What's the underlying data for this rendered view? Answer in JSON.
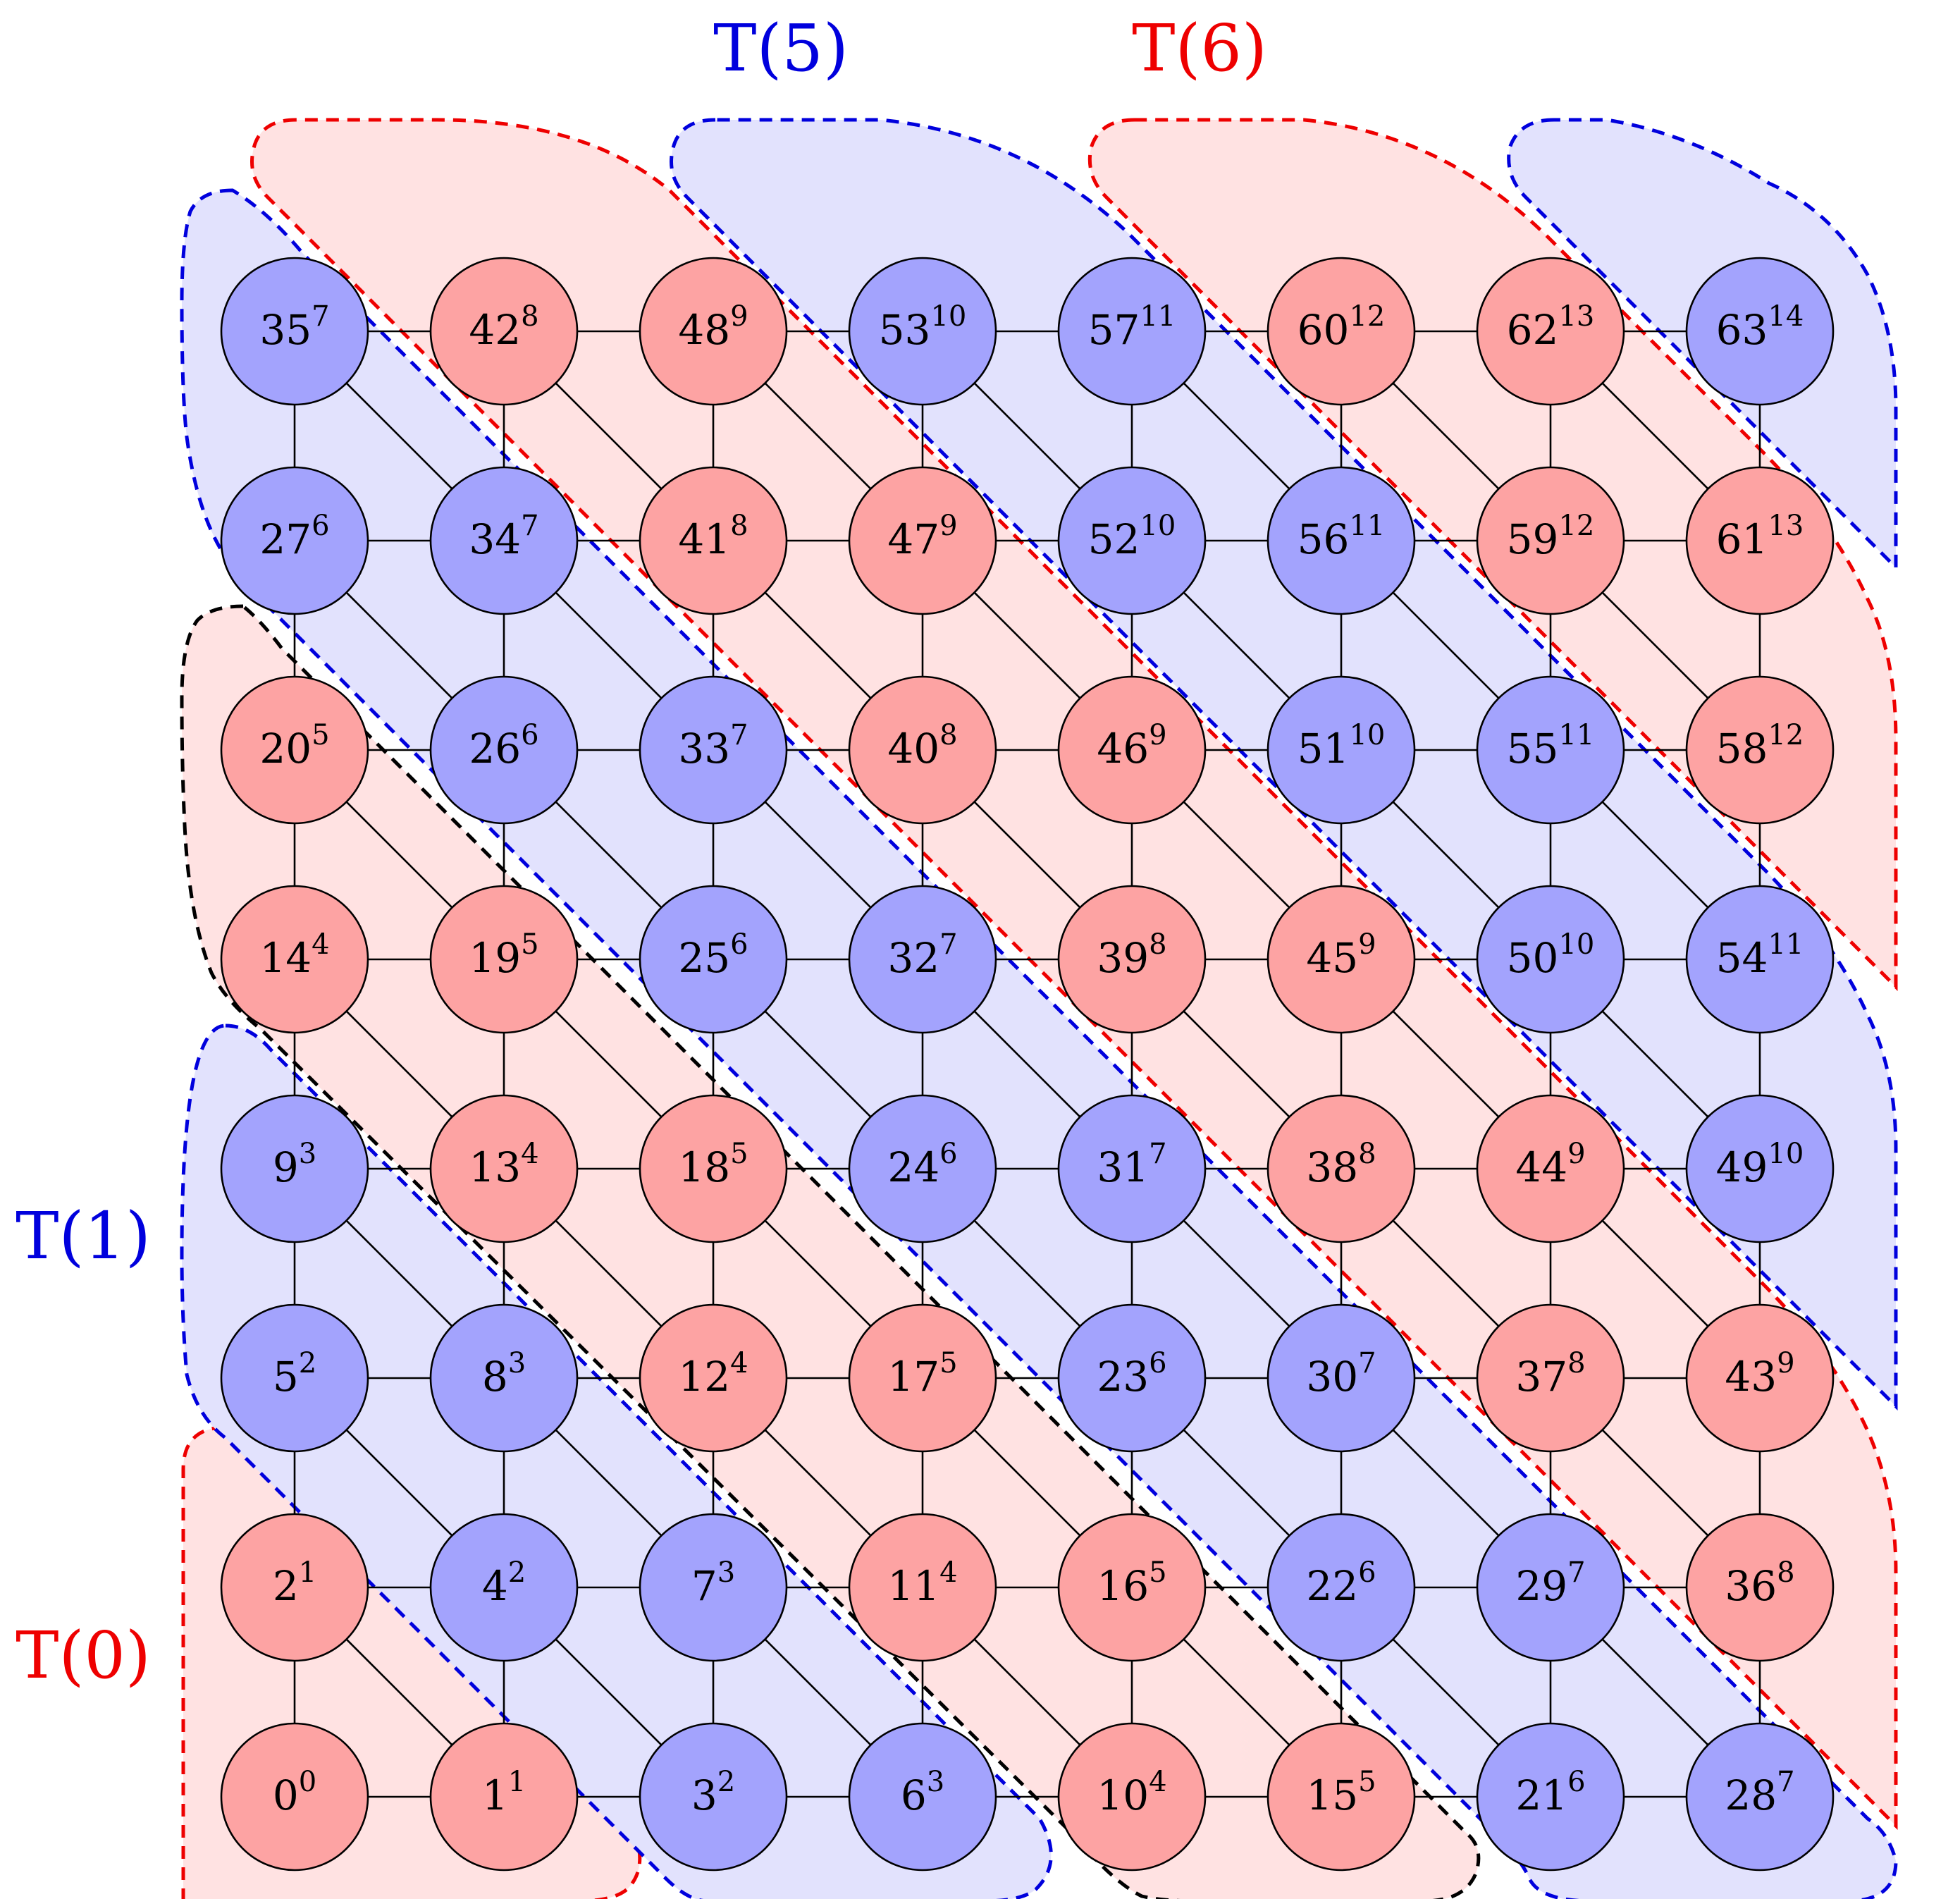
{
  "colors": {
    "red_node": "#fda3a3",
    "blue_node": "#a3a3fd",
    "red_region_fill": "#ffe2e2",
    "blue_region_fill": "#e2e2fd",
    "red_dash": "#ee0000",
    "blue_dash": "#0000dd",
    "black_dash": "#000000"
  },
  "region_labels": [
    {
      "id": "T5",
      "text": "T(5)",
      "color": "blue"
    },
    {
      "id": "T6",
      "text": "T(6)",
      "color": "red"
    },
    {
      "id": "T1",
      "text": "T(1)",
      "color": "blue"
    },
    {
      "id": "T0",
      "text": "T(0)",
      "color": "red"
    }
  ],
  "grid": {
    "rows": [
      [
        {
          "n": "35",
          "e": "7",
          "c": "blue"
        },
        {
          "n": "42",
          "e": "8",
          "c": "red"
        },
        {
          "n": "48",
          "e": "9",
          "c": "red"
        },
        {
          "n": "53",
          "e": "10",
          "c": "blue"
        },
        {
          "n": "57",
          "e": "11",
          "c": "blue"
        },
        {
          "n": "60",
          "e": "12",
          "c": "red"
        },
        {
          "n": "62",
          "e": "13",
          "c": "red"
        },
        {
          "n": "63",
          "e": "14",
          "c": "blue"
        }
      ],
      [
        {
          "n": "27",
          "e": "6",
          "c": "blue"
        },
        {
          "n": "34",
          "e": "7",
          "c": "blue"
        },
        {
          "n": "41",
          "e": "8",
          "c": "red"
        },
        {
          "n": "47",
          "e": "9",
          "c": "red"
        },
        {
          "n": "52",
          "e": "10",
          "c": "blue"
        },
        {
          "n": "56",
          "e": "11",
          "c": "blue"
        },
        {
          "n": "59",
          "e": "12",
          "c": "red"
        },
        {
          "n": "61",
          "e": "13",
          "c": "red"
        }
      ],
      [
        {
          "n": "20",
          "e": "5",
          "c": "red"
        },
        {
          "n": "26",
          "e": "6",
          "c": "blue"
        },
        {
          "n": "33",
          "e": "7",
          "c": "blue"
        },
        {
          "n": "40",
          "e": "8",
          "c": "red"
        },
        {
          "n": "46",
          "e": "9",
          "c": "red"
        },
        {
          "n": "51",
          "e": "10",
          "c": "blue"
        },
        {
          "n": "55",
          "e": "11",
          "c": "blue"
        },
        {
          "n": "58",
          "e": "12",
          "c": "red"
        }
      ],
      [
        {
          "n": "14",
          "e": "4",
          "c": "red"
        },
        {
          "n": "19",
          "e": "5",
          "c": "red"
        },
        {
          "n": "25",
          "e": "6",
          "c": "blue"
        },
        {
          "n": "32",
          "e": "7",
          "c": "blue"
        },
        {
          "n": "39",
          "e": "8",
          "c": "red"
        },
        {
          "n": "45",
          "e": "9",
          "c": "red"
        },
        {
          "n": "50",
          "e": "10",
          "c": "blue"
        },
        {
          "n": "54",
          "e": "11",
          "c": "blue"
        }
      ],
      [
        {
          "n": "9",
          "e": "3",
          "c": "blue"
        },
        {
          "n": "13",
          "e": "4",
          "c": "red"
        },
        {
          "n": "18",
          "e": "5",
          "c": "red"
        },
        {
          "n": "24",
          "e": "6",
          "c": "blue"
        },
        {
          "n": "31",
          "e": "7",
          "c": "blue"
        },
        {
          "n": "38",
          "e": "8",
          "c": "red"
        },
        {
          "n": "44",
          "e": "9",
          "c": "red"
        },
        {
          "n": "49",
          "e": "10",
          "c": "blue"
        }
      ],
      [
        {
          "n": "5",
          "e": "2",
          "c": "blue"
        },
        {
          "n": "8",
          "e": "3",
          "c": "blue"
        },
        {
          "n": "12",
          "e": "4",
          "c": "red"
        },
        {
          "n": "17",
          "e": "5",
          "c": "red"
        },
        {
          "n": "23",
          "e": "6",
          "c": "blue"
        },
        {
          "n": "30",
          "e": "7",
          "c": "blue"
        },
        {
          "n": "37",
          "e": "8",
          "c": "red"
        },
        {
          "n": "43",
          "e": "9",
          "c": "red"
        }
      ],
      [
        {
          "n": "2",
          "e": "1",
          "c": "red"
        },
        {
          "n": "4",
          "e": "2",
          "c": "blue"
        },
        {
          "n": "7",
          "e": "3",
          "c": "blue"
        },
        {
          "n": "11",
          "e": "4",
          "c": "red"
        },
        {
          "n": "16",
          "e": "5",
          "c": "red"
        },
        {
          "n": "22",
          "e": "6",
          "c": "blue"
        },
        {
          "n": "29",
          "e": "7",
          "c": "blue"
        },
        {
          "n": "36",
          "e": "8",
          "c": "red"
        }
      ],
      [
        {
          "n": "0",
          "e": "0",
          "c": "red"
        },
        {
          "n": "1",
          "e": "1",
          "c": "red"
        },
        {
          "n": "3",
          "e": "2",
          "c": "blue"
        },
        {
          "n": "6",
          "e": "3",
          "c": "blue"
        },
        {
          "n": "10",
          "e": "4",
          "c": "red"
        },
        {
          "n": "15",
          "e": "5",
          "c": "red"
        },
        {
          "n": "21",
          "e": "6",
          "c": "blue"
        },
        {
          "n": "28",
          "e": "7",
          "c": "blue"
        }
      ]
    ]
  }
}
